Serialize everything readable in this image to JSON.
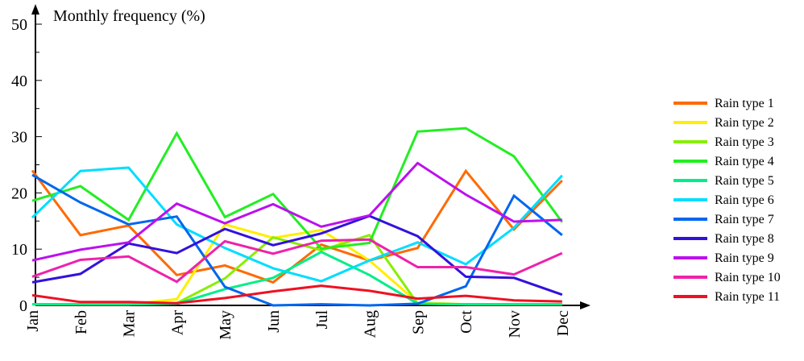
{
  "chart_data": {
    "type": "line",
    "title": "",
    "ylabel": "Monthly frequency (%)",
    "xlabel": "",
    "ylim": [
      0,
      50
    ],
    "yticks": [
      0,
      10,
      20,
      30,
      40,
      50
    ],
    "categories": [
      "Jan",
      "Feb",
      "Mar",
      "Apr",
      "May",
      "Jun",
      "Jul",
      "Aug",
      "Sep",
      "Oct",
      "Nov",
      "Dec"
    ],
    "grid": false,
    "legend_position": "right",
    "series": [
      {
        "name": "Rain type 1",
        "color": "#FF6A00",
        "values": [
          24.0,
          12.5,
          14.2,
          5.4,
          7.1,
          4.1,
          10.8,
          8.0,
          10.2,
          23.9,
          13.5,
          22.2
        ]
      },
      {
        "name": "Rain type 2",
        "color": "#FFEE00",
        "values": [
          0.2,
          0.2,
          0.2,
          1.1,
          14.4,
          12.0,
          13.4,
          8.0,
          0.5,
          0.2,
          0.2,
          0.2
        ]
      },
      {
        "name": "Rain type 3",
        "color": "#88EE00",
        "values": [
          0.2,
          0.2,
          0.2,
          0.4,
          4.8,
          12.1,
          9.8,
          12.5,
          0.3,
          0.2,
          0.2,
          0.2
        ]
      },
      {
        "name": "Rain type 4",
        "color": "#22EE22",
        "values": [
          18.6,
          21.2,
          15.2,
          30.6,
          15.7,
          19.8,
          10.1,
          11.1,
          30.9,
          31.5,
          26.5,
          14.8
        ]
      },
      {
        "name": "Rain type 5",
        "color": "#00EE88",
        "values": [
          0.2,
          0.2,
          0.2,
          0.3,
          2.9,
          4.9,
          9.5,
          5.4,
          0.3,
          0.2,
          0.2,
          0.2
        ]
      },
      {
        "name": "Rain type 6",
        "color": "#00DDFF",
        "values": [
          15.6,
          23.9,
          24.5,
          14.4,
          10.2,
          6.6,
          4.3,
          8.0,
          11.2,
          7.3,
          13.8,
          23.1
        ]
      },
      {
        "name": "Rain type 7",
        "color": "#0066EE",
        "values": [
          23.2,
          18.3,
          14.4,
          15.8,
          3.3,
          0.0,
          0.2,
          0.0,
          0.3,
          3.4,
          19.5,
          12.5
        ]
      },
      {
        "name": "Rain type 8",
        "color": "#3311DD",
        "values": [
          4.1,
          5.6,
          11.0,
          9.3,
          13.6,
          10.7,
          12.8,
          15.9,
          12.3,
          5.1,
          4.9,
          1.9
        ]
      },
      {
        "name": "Rain type 9",
        "color": "#BB11EE",
        "values": [
          8.0,
          9.9,
          11.2,
          18.1,
          14.6,
          18.0,
          14.0,
          16.0,
          25.3,
          19.7,
          14.9,
          15.2
        ]
      },
      {
        "name": "Rain type 10",
        "color": "#EE22AA",
        "values": [
          5.1,
          8.1,
          8.7,
          4.2,
          11.4,
          9.2,
          11.5,
          11.7,
          6.8,
          6.8,
          5.5,
          9.3
        ]
      },
      {
        "name": "Rain type 11",
        "color": "#EE1122",
        "values": [
          1.8,
          0.6,
          0.6,
          0.4,
          1.3,
          2.5,
          3.5,
          2.6,
          1.2,
          1.7,
          0.9,
          0.7
        ]
      }
    ]
  }
}
